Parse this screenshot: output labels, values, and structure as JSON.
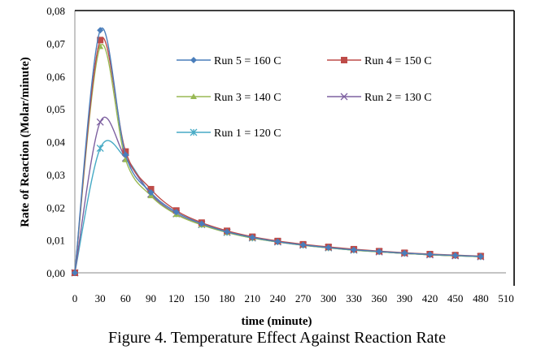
{
  "chart_data": {
    "type": "line",
    "title": "",
    "caption": "Figure 4. Temperature Effect Against Reaction Rate",
    "xlabel": "time (minute)",
    "ylabel": "Rate of Reaction (Molar/minute)",
    "xlim": [
      0,
      510
    ],
    "ylim": [
      0,
      0.08
    ],
    "xticks": [
      0,
      30,
      60,
      90,
      120,
      150,
      180,
      210,
      240,
      270,
      300,
      330,
      360,
      390,
      420,
      450,
      480,
      510
    ],
    "xtick_labels": [
      "0",
      "30",
      "60",
      "90",
      "120",
      "150",
      "180",
      "210",
      "240",
      "270",
      "300",
      "330",
      "360",
      "390",
      "420",
      "450",
      "480",
      "510"
    ],
    "yticks": [
      0,
      0.01,
      0.02,
      0.03,
      0.04,
      0.05,
      0.06,
      0.07,
      0.08
    ],
    "ytick_labels": [
      "0,00",
      "0,01",
      "0,02",
      "0,03",
      "0,04",
      "0,05",
      "0,06",
      "0,07",
      "0,08"
    ],
    "grid": false,
    "smooth": true,
    "legend_position": "top-right",
    "x": [
      0,
      30,
      60,
      90,
      120,
      150,
      180,
      210,
      240,
      270,
      300,
      330,
      360,
      390,
      420,
      450,
      480
    ],
    "series": [
      {
        "name": "Run 5 = 160 C",
        "color": "#4a7ebb",
        "marker": "diamond",
        "values": [
          0.0,
          0.074,
          0.036,
          0.0245,
          0.0185,
          0.015,
          0.0125,
          0.0108,
          0.0095,
          0.0085,
          0.0077,
          0.007,
          0.0065,
          0.006,
          0.0056,
          0.0053,
          0.005
        ]
      },
      {
        "name": "Run 4 = 150 C",
        "color": "#be4b48",
        "marker": "square",
        "values": [
          0.0,
          0.071,
          0.037,
          0.0255,
          0.019,
          0.0153,
          0.0128,
          0.011,
          0.0097,
          0.0087,
          0.0079,
          0.0072,
          0.0066,
          0.0061,
          0.0057,
          0.0054,
          0.0051
        ]
      },
      {
        "name": "Run 3 = 140 C",
        "color": "#98b954",
        "marker": "triangle",
        "values": [
          0.0,
          0.069,
          0.0345,
          0.0235,
          0.0178,
          0.0146,
          0.0123,
          0.0106,
          0.0094,
          0.0084,
          0.0076,
          0.0069,
          0.0064,
          0.0059,
          0.0055,
          0.0052,
          0.0049
        ]
      },
      {
        "name": "Run 2 = 130 C",
        "color": "#7d60a0",
        "marker": "x",
        "values": [
          0.0,
          0.046,
          0.035,
          0.024,
          0.018,
          0.0148,
          0.0124,
          0.0107,
          0.0095,
          0.0085,
          0.0077,
          0.007,
          0.0064,
          0.0059,
          0.0055,
          0.0052,
          0.0049
        ]
      },
      {
        "name": "Run 1 = 120 C",
        "color": "#46aac5",
        "marker": "star",
        "values": [
          0.0,
          0.038,
          0.035,
          0.024,
          0.018,
          0.0147,
          0.0123,
          0.0106,
          0.0094,
          0.0084,
          0.0076,
          0.0069,
          0.0064,
          0.0059,
          0.0055,
          0.0052,
          0.0049
        ]
      }
    ]
  }
}
